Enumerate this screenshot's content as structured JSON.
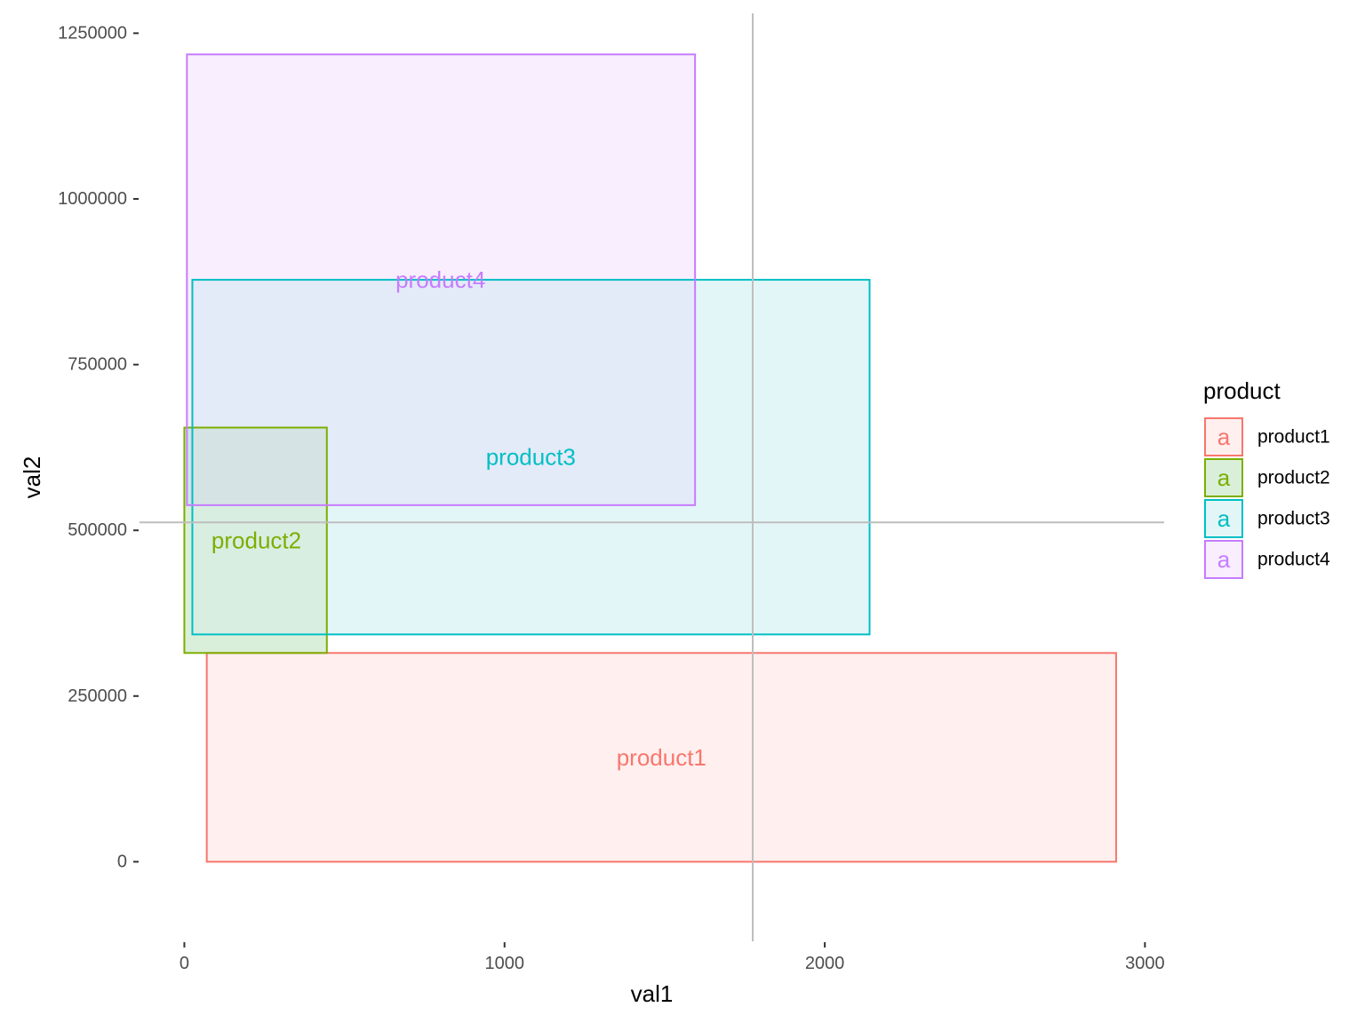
{
  "chart_data": {
    "type": "rect",
    "xlabel": "val1",
    "ylabel": "val2",
    "xlim": [
      -140,
      3060
    ],
    "ylim": [
      -120000,
      1280000
    ],
    "x_ticks": [
      0,
      1000,
      2000,
      3000
    ],
    "x_tick_labels": [
      "0",
      "1000",
      "2000",
      "3000"
    ],
    "y_ticks": [
      0,
      250000,
      500000,
      750000,
      1000000,
      1250000
    ],
    "y_tick_labels": [
      "0",
      "250000",
      "500000",
      "750000",
      "1000000",
      "1250000"
    ],
    "reference_lines": {
      "vline_x": 1775,
      "hline_y": 512000,
      "color": "#bebebe"
    },
    "grid": false,
    "legend": {
      "title": "product",
      "placement": "right",
      "key_glyph": "a"
    },
    "series": [
      {
        "name": "product1",
        "color": "#F8766D",
        "fill": "#FFF0EF",
        "xmin": 70,
        "xmax": 2910,
        "ymin": 0,
        "ymax": 315000,
        "label_x": 1490,
        "label_y": 157500
      },
      {
        "name": "product2",
        "color": "#7CAE00",
        "fill": "#DAEFD9",
        "xmin": 0,
        "xmax": 445,
        "ymin": 315000,
        "ymax": 655000,
        "label_x": 225,
        "label_y": 485000
      },
      {
        "name": "product3",
        "color": "#00BFC4",
        "fill": "#E3F6F7",
        "xmin": 25,
        "xmax": 2140,
        "ymin": 343000,
        "ymax": 878000,
        "label_x": 1082,
        "label_y": 610500
      },
      {
        "name": "product4",
        "color": "#C77CFF",
        "fill": "#F8EEFE",
        "xmin": 8,
        "xmax": 1595,
        "ymin": 538000,
        "ymax": 1218000,
        "label_x": 800,
        "label_y": 878000
      }
    ],
    "overlap_fills": {
      "p3_p4": "#E3EAF8",
      "p2_p3_p4": "#D5E3E4"
    }
  }
}
